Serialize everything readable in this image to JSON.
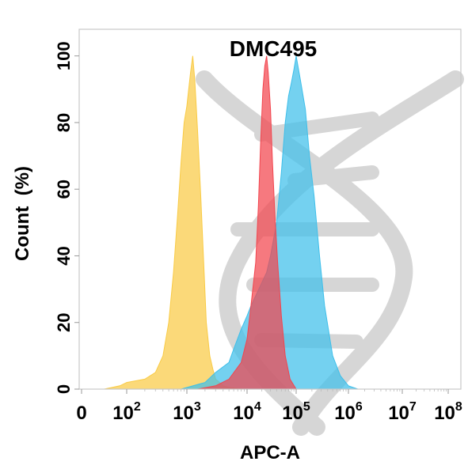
{
  "chart_data": {
    "type": "area",
    "title": "DMC495",
    "xlabel": "APC-A",
    "ylabel": "Count  (%)",
    "x_scale": "log",
    "x_tick_labels": [
      {
        "base": "0",
        "exp": ""
      },
      {
        "base": "10",
        "exp": "2"
      },
      {
        "base": "10",
        "exp": "3"
      },
      {
        "base": "10",
        "exp": "4"
      },
      {
        "base": "10",
        "exp": "5"
      },
      {
        "base": "10",
        "exp": "6"
      },
      {
        "base": "10",
        "exp": "7"
      },
      {
        "base": "10",
        "exp": "8"
      }
    ],
    "y_ticks": [
      0,
      20,
      40,
      60,
      80,
      100
    ],
    "ylim": [
      0,
      108
    ],
    "grid": false,
    "series": [
      {
        "color": "#F9CB45",
        "x": [
          10,
          50,
          100,
          200,
          300,
          400,
          500,
          600,
          700,
          800,
          900,
          1000,
          1150,
          1250,
          1350,
          1500,
          1700,
          1900,
          2100,
          2400,
          2700,
          3000,
          3500,
          4000,
          5000,
          7000,
          10000
        ],
        "y": [
          0,
          1,
          2,
          3,
          5,
          10,
          20,
          35,
          52,
          68,
          80,
          85,
          95,
          100,
          93,
          78,
          58,
          38,
          20,
          10,
          6,
          3,
          2,
          1,
          0.5,
          0.2,
          0
        ]
      },
      {
        "color": "#3EBFEA",
        "x": [
          800,
          2000,
          3000,
          5000,
          6000,
          8000,
          10000,
          12000,
          15000,
          20000,
          25000,
          30000,
          40000,
          50000,
          60000,
          70000,
          80000,
          90000,
          100000,
          120000,
          150000,
          180000,
          220000,
          280000,
          350000,
          500000,
          700000,
          1000000,
          1500000
        ],
        "y": [
          0,
          2,
          5,
          8,
          12,
          18,
          22,
          25,
          28,
          32,
          35,
          40,
          50,
          65,
          80,
          88,
          92,
          96,
          100,
          93,
          84,
          70,
          58,
          40,
          25,
          10,
          4,
          1,
          0
        ]
      },
      {
        "color": "#F2454E",
        "x": [
          1500,
          3000,
          5000,
          8000,
          10000,
          12000,
          15000,
          17000,
          19000,
          21000,
          23000,
          25000,
          27000,
          30000,
          33000,
          37000,
          42000,
          50000,
          60000,
          75000,
          100000
        ],
        "y": [
          0,
          1,
          3,
          8,
          15,
          25,
          38,
          55,
          75,
          90,
          97,
          100,
          95,
          84,
          68,
          52,
          38,
          22,
          10,
          3,
          0
        ]
      }
    ]
  }
}
